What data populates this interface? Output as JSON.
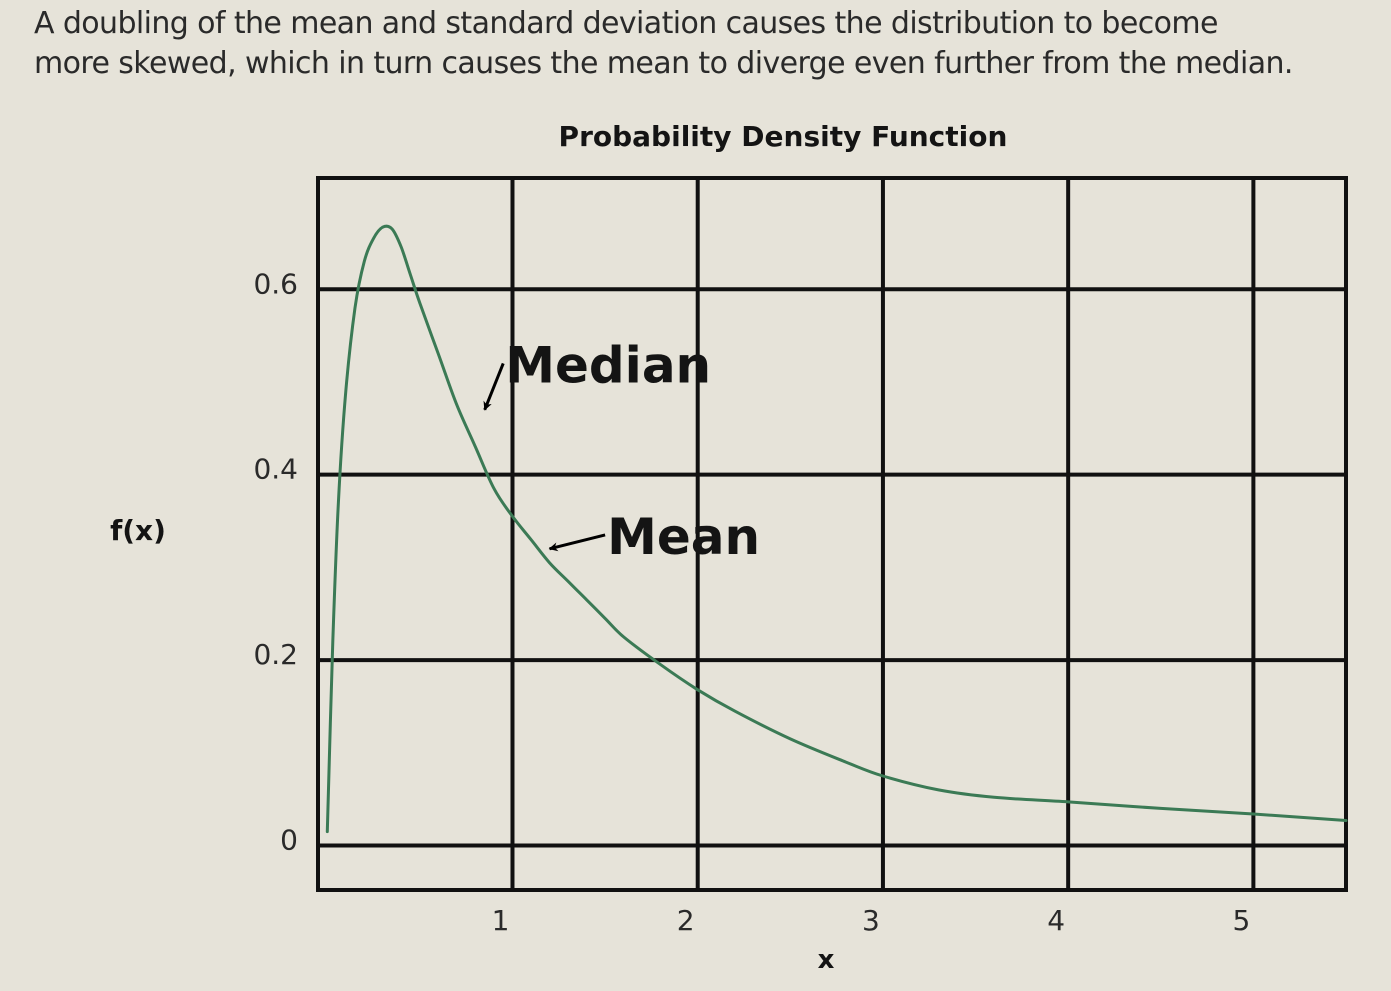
{
  "caption": {
    "line1": "A doubling of the mean and standard deviation causes the distribution to become",
    "line2": "more skewed, which in turn causes the mean to diverge even further from the median."
  },
  "colors": {
    "background": "#e6e3d9",
    "curve": "#3b7a55",
    "grid": "#111111",
    "text": "#141414"
  },
  "chart_data": {
    "type": "line",
    "title": "Probability Density Function",
    "xlabel": "x",
    "ylabel": "f(x)",
    "xlim": [
      -0.05,
      5.5
    ],
    "ylim": [
      -0.048,
      0.72
    ],
    "x_ticks": [
      1,
      2,
      3,
      4,
      5
    ],
    "x_tick_labels": [
      "1",
      "2",
      "3",
      "4",
      "5"
    ],
    "y_ticks": [
      0,
      0.2,
      0.4,
      0.6
    ],
    "y_tick_labels": [
      "0",
      "0.2",
      "0.4",
      "0.6"
    ],
    "grid": true,
    "series": [
      {
        "x": [
          0.0,
          0.03,
          0.06,
          0.1,
          0.15,
          0.2,
          0.25,
          0.3,
          0.35,
          0.4,
          0.45,
          0.5,
          0.6,
          0.7,
          0.8,
          0.9,
          1.0,
          1.1,
          1.2,
          1.3,
          1.4,
          1.5,
          1.6,
          1.8,
          2.0,
          2.2,
          2.5,
          2.8,
          3.0,
          3.3,
          3.6,
          4.0,
          4.5,
          5.0,
          5.5
        ],
        "y": [
          0.015,
          0.22,
          0.37,
          0.49,
          0.58,
          0.63,
          0.655,
          0.667,
          0.665,
          0.645,
          0.615,
          0.585,
          0.53,
          0.475,
          0.43,
          0.385,
          0.355,
          0.33,
          0.305,
          0.285,
          0.265,
          0.245,
          0.225,
          0.195,
          0.168,
          0.145,
          0.115,
          0.09,
          0.075,
          0.06,
          0.052,
          0.047,
          0.04,
          0.034,
          0.027
        ]
      }
    ],
    "annotations": [
      {
        "text": "Median",
        "x": 0.95,
        "y": 0.52,
        "arrow_to_x": 0.85,
        "arrow_to_y": 0.47
      },
      {
        "text": "Mean",
        "x": 1.5,
        "y": 0.335,
        "arrow_to_x": 1.2,
        "arrow_to_y": 0.32
      }
    ]
  }
}
